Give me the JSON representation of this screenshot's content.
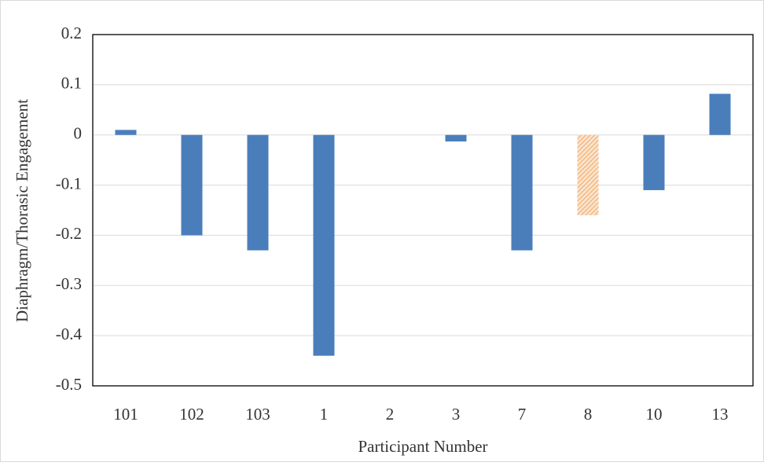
{
  "chart_data": {
    "type": "bar",
    "x_label": "Participant Number",
    "y_label": "Diaphragm/Thorasic Engagement",
    "categories": [
      "101",
      "102",
      "103",
      "1",
      "2",
      "3",
      "7",
      "8",
      "10",
      "13"
    ],
    "values": [
      0.01,
      -0.2,
      -0.23,
      -0.44,
      0,
      -0.013,
      -0.23,
      -0.16,
      -0.11,
      0.082
    ],
    "colors": [
      "#4a7ebb",
      "#4a7ebb",
      "#4a7ebb",
      "#4a7ebb",
      "#4a7ebb",
      "#4a7ebb",
      "#4a7ebb",
      "#f0a868",
      "#4a7ebb",
      "#4a7ebb"
    ],
    "bar_styles": [
      "solid",
      "solid",
      "solid",
      "solid",
      "solid",
      "solid",
      "solid",
      "hatched",
      "solid",
      "solid"
    ],
    "ylim": [
      -0.5,
      0.2
    ],
    "yticks": [
      -0.5,
      -0.4,
      -0.3,
      -0.2,
      -0.1,
      0,
      0.1,
      0.2
    ],
    "grid": true
  }
}
